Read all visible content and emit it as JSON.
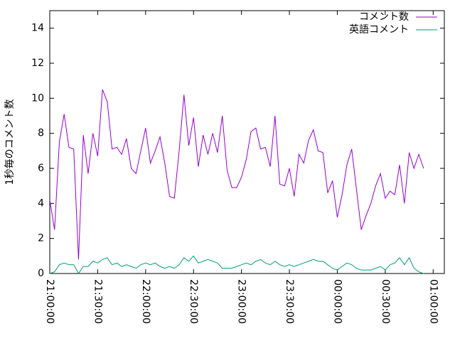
{
  "chart_data": {
    "type": "line",
    "ylabel": "1秒毎のコメント数",
    "x": [
      0,
      3,
      6,
      9,
      12,
      15,
      18,
      21,
      24,
      27,
      30,
      33,
      36,
      39,
      42,
      45,
      48,
      51,
      54,
      57,
      60,
      63,
      66,
      69,
      72,
      75,
      78,
      81,
      84,
      87,
      90,
      93,
      96,
      99,
      102,
      105,
      108,
      111,
      114,
      117,
      120,
      123,
      126,
      129,
      132,
      135,
      138,
      141,
      144,
      147,
      150,
      153,
      156,
      159,
      162,
      165,
      168,
      171,
      174,
      177,
      180,
      183,
      186,
      189,
      192,
      195,
      198,
      201,
      204,
      207,
      210,
      213,
      216,
      219,
      222,
      225,
      228,
      231,
      234
    ],
    "series": [
      {
        "name": "コメント数",
        "color": "#9400d3",
        "values": [
          4.2,
          2.5,
          7.5,
          9.1,
          7.2,
          7.1,
          0.8,
          7.9,
          5.7,
          8.0,
          6.7,
          10.5,
          9.8,
          7.1,
          7.2,
          6.8,
          7.7,
          6.0,
          5.7,
          7.0,
          8.3,
          6.3,
          7.0,
          7.8,
          6.3,
          4.4,
          4.3,
          7.0,
          10.2,
          7.3,
          8.9,
          6.1,
          7.9,
          6.8,
          8.0,
          6.9,
          9.0,
          5.9,
          4.9,
          4.9,
          5.5,
          6.5,
          8.1,
          8.3,
          7.1,
          7.2,
          6.1,
          9.0,
          5.1,
          5.0,
          6.0,
          4.4,
          6.8,
          6.3,
          7.6,
          8.2,
          7.0,
          6.9,
          4.6,
          5.3,
          3.2,
          4.5,
          6.2,
          7.1,
          4.8,
          2.5,
          3.3,
          4.0,
          5.0,
          5.7,
          4.3,
          4.7,
          4.5,
          6.2,
          4.0,
          6.9,
          6.0,
          6.8,
          6.0
        ]
      },
      {
        "name": "英語コメント",
        "color": "#009e73",
        "values": [
          0,
          0.1,
          0.5,
          0.6,
          0.5,
          0.5,
          0,
          0.4,
          0.4,
          0.7,
          0.6,
          0.8,
          0.9,
          0.5,
          0.6,
          0.4,
          0.5,
          0.4,
          0.3,
          0.5,
          0.6,
          0.5,
          0.6,
          0.4,
          0.3,
          0.4,
          0.3,
          0.5,
          0.9,
          0.7,
          1.0,
          0.6,
          0.7,
          0.8,
          0.7,
          0.6,
          0.3,
          0.3,
          0.3,
          0.4,
          0.5,
          0.6,
          0.5,
          0.7,
          0.8,
          0.6,
          0.5,
          0.7,
          0.5,
          0.4,
          0.5,
          0.4,
          0.5,
          0.6,
          0.7,
          0.8,
          0.7,
          0.7,
          0.5,
          0.3,
          0.2,
          0.4,
          0.6,
          0.5,
          0.3,
          0.2,
          0.2,
          0.2,
          0.3,
          0.4,
          0.2,
          0.5,
          0.6,
          0.9,
          0.5,
          0.9,
          0.3,
          0.1,
          0
        ]
      }
    ],
    "xlim": [
      0,
      247
    ],
    "xticks": [
      {
        "value": 0,
        "label": "21:00:00"
      },
      {
        "value": 30,
        "label": "21:30:00"
      },
      {
        "value": 60,
        "label": "22:00:00"
      },
      {
        "value": 90,
        "label": "22:30:00"
      },
      {
        "value": 120,
        "label": "23:00:00"
      },
      {
        "value": 150,
        "label": "23:30:00"
      },
      {
        "value": 180,
        "label": "00:00:00"
      },
      {
        "value": 210,
        "label": "00:30:00"
      },
      {
        "value": 240,
        "label": "01:00:00"
      }
    ],
    "ylim": [
      0,
      15
    ],
    "yticks": [
      0,
      2,
      4,
      6,
      8,
      10,
      12,
      14
    ],
    "legend": "upper right",
    "grid": false
  }
}
